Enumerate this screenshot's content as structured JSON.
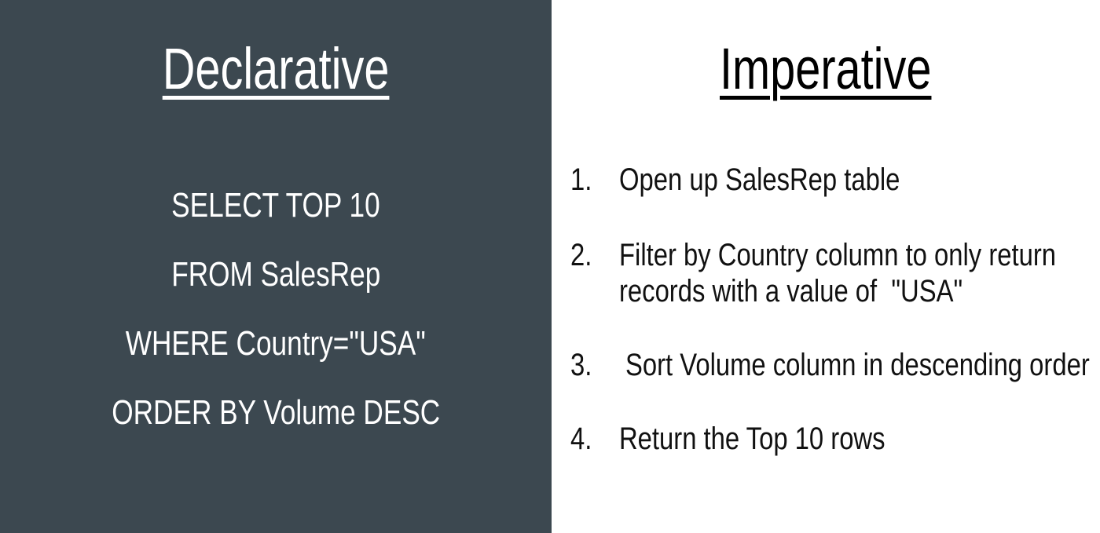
{
  "declarative": {
    "title": "Declarative",
    "sql_lines": [
      "SELECT TOP 10",
      "FROM SalesRep",
      "WHERE Country=\"USA\"",
      "ORDER BY Volume DESC"
    ]
  },
  "imperative": {
    "title": "Imperative",
    "steps": [
      {
        "number": "1.",
        "lines": [
          "Open up SalesRep table"
        ]
      },
      {
        "number": "2.",
        "lines": [
          "Filter by Country column to only return",
          "records with a value of  \"USA\""
        ]
      },
      {
        "number": "3.",
        "lines": [
          "Sort Volume column in descending order"
        ]
      },
      {
        "number": "4.",
        "lines": [
          "Return the Top 10 rows"
        ]
      }
    ]
  },
  "colors": {
    "left_background": "#3c4850",
    "right_background": "#ffffff",
    "left_text": "#ffffff",
    "right_text": "#111111"
  }
}
